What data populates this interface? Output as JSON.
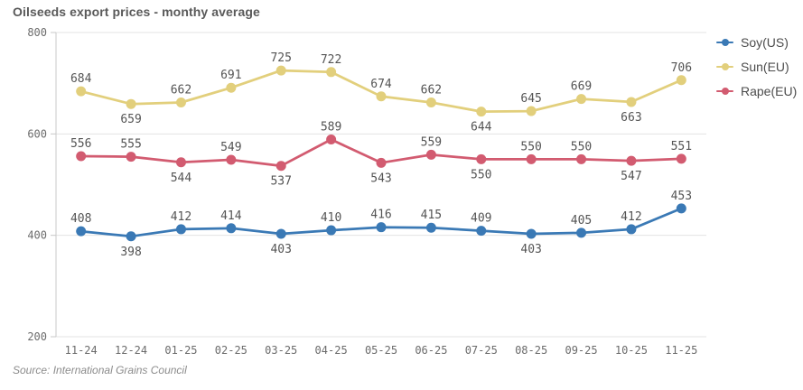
{
  "title": "Oilseeds export prices - monthy average",
  "source": "Source: International Grains Council",
  "colors": {
    "title": "#595959",
    "axis_line": "#c8c8c8",
    "grid_line": "#e3e3e3",
    "tick_label": "#6b6b6b",
    "data_label": "#545454",
    "legend_text": "#4c4c4c"
  },
  "chart_data": {
    "type": "line",
    "title": "Oilseeds export prices - monthy average",
    "categories": [
      "11-24",
      "12-24",
      "01-25",
      "02-25",
      "03-25",
      "04-25",
      "05-25",
      "06-25",
      "07-25",
      "08-25",
      "09-25",
      "10-25",
      "11-25"
    ],
    "series": [
      {
        "name": "Soy(US)",
        "color": "#3a79b5",
        "values": [
          408,
          398,
          412,
          414,
          403,
          410,
          416,
          415,
          409,
          403,
          405,
          412,
          453
        ],
        "label_pos": [
          "above",
          "below",
          "above",
          "above",
          "below",
          "above",
          "above",
          "above",
          "above",
          "below",
          "above",
          "above",
          "above"
        ]
      },
      {
        "name": "Sun(EU)",
        "color": "#e2cf7c",
        "values": [
          684,
          659,
          662,
          691,
          725,
          722,
          674,
          662,
          644,
          645,
          669,
          663,
          706
        ],
        "label_pos": [
          "above",
          "below",
          "above",
          "above",
          "above",
          "above",
          "above",
          "above",
          "below",
          "above",
          "above",
          "below",
          "above"
        ]
      },
      {
        "name": "Rape(EU)",
        "color": "#d25b70",
        "values": [
          556,
          555,
          544,
          549,
          537,
          589,
          543,
          559,
          550,
          550,
          550,
          547,
          551
        ],
        "label_pos": [
          "above",
          "above",
          "below",
          "above",
          "below",
          "above",
          "below",
          "above",
          "below",
          "above",
          "above",
          "below",
          "above"
        ]
      }
    ],
    "ylim": [
      200,
      800
    ],
    "yticks": [
      200,
      400,
      600,
      800
    ],
    "grid": true,
    "legend_position": "top-right",
    "legend_order": [
      "Soy(US)",
      "Sun(EU)",
      "Rape(EU)"
    ]
  }
}
